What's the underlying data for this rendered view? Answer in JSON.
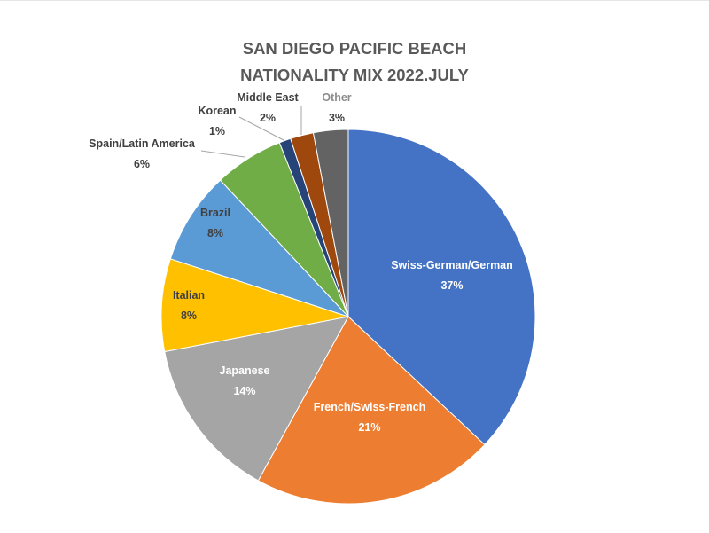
{
  "chart_data": {
    "type": "pie",
    "title_lines": [
      "SAN DIEGO PACIFIC BEACH",
      "NATIONALITY MIX 2022.JULY"
    ],
    "slices": [
      {
        "label": "Swiss-German/German",
        "value": 37,
        "value_label": "37%",
        "color": "#4472c4"
      },
      {
        "label": "French/Swiss-French",
        "value": 21,
        "value_label": "21%",
        "color": "#ed7d31"
      },
      {
        "label": "Japanese",
        "value": 14,
        "value_label": "14%",
        "color": "#a5a5a5"
      },
      {
        "label": "Italian",
        "value": 8,
        "value_label": "8%",
        "color": "#ffc000"
      },
      {
        "label": "Brazil",
        "value": 8,
        "value_label": "8%",
        "color": "#5b9bd5"
      },
      {
        "label": "Spain/Latin America",
        "value": 6,
        "value_label": "6%",
        "color": "#70ad47"
      },
      {
        "label": "Korean",
        "value": 1,
        "value_label": "1%",
        "color": "#264478"
      },
      {
        "label": "Middle East",
        "value": 2,
        "value_label": "2%",
        "color": "#9e480e"
      },
      {
        "label": "Other",
        "value": 3,
        "value_label": "3%",
        "color": "#636363"
      }
    ],
    "legend": "none",
    "start_angle": "12 o'clock",
    "direction": "clockwise"
  }
}
